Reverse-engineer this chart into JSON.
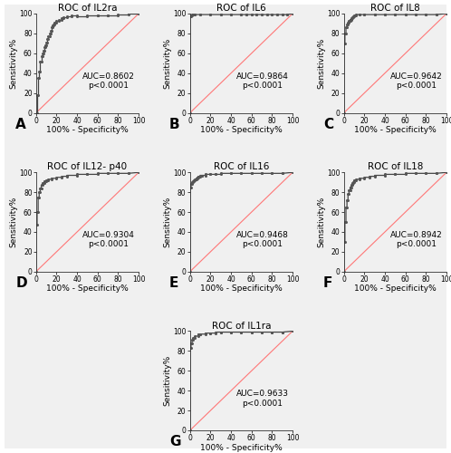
{
  "panels": [
    {
      "label": "A",
      "title": "ROC of IL2ra",
      "auc_text": "AUC=0.8602\np<0.0001",
      "roc_x": [
        0,
        1,
        1,
        2,
        2,
        3,
        3,
        4,
        4,
        5,
        5,
        6,
        6,
        7,
        7,
        8,
        8,
        9,
        9,
        10,
        10,
        11,
        11,
        12,
        12,
        13,
        13,
        14,
        14,
        15,
        15,
        16,
        16,
        17,
        17,
        18,
        18,
        20,
        20,
        22,
        22,
        25,
        25,
        27,
        27,
        30,
        30,
        35,
        35,
        40,
        40,
        50,
        50,
        60,
        60,
        70,
        70,
        80,
        80,
        90,
        90,
        100
      ],
      "roc_y": [
        0,
        0,
        18,
        18,
        35,
        35,
        42,
        42,
        52,
        52,
        57,
        57,
        60,
        60,
        63,
        63,
        66,
        66,
        68,
        68,
        71,
        71,
        74,
        74,
        77,
        77,
        80,
        80,
        83,
        83,
        86,
        86,
        88,
        88,
        89,
        89,
        91,
        91,
        93,
        93,
        94,
        94,
        95,
        95,
        96,
        96,
        97,
        97,
        98,
        98,
        97,
        97,
        98,
        98,
        98,
        98,
        98,
        98,
        99,
        99,
        100,
        100
      ]
    },
    {
      "label": "B",
      "title": "ROC of IL6",
      "auc_text": "AUC=0.9864\np<0.0001",
      "roc_x": [
        0,
        0,
        1,
        1,
        2,
        2,
        3,
        3,
        5,
        5,
        10,
        10,
        20,
        20,
        30,
        30,
        40,
        40,
        50,
        50,
        55,
        55,
        60,
        60,
        65,
        65,
        70,
        70,
        75,
        75,
        80,
        80,
        85,
        85,
        90,
        90,
        95,
        95,
        100
      ],
      "roc_y": [
        0,
        97,
        97,
        98,
        98,
        99,
        99,
        99,
        99,
        99,
        99,
        99,
        99,
        99,
        99,
        99,
        99,
        99,
        99,
        99,
        99,
        99,
        99,
        99,
        99,
        99,
        99,
        99,
        99,
        99,
        99,
        99,
        99,
        99,
        99,
        99,
        99,
        99,
        100
      ]
    },
    {
      "label": "C",
      "title": "ROC of IL8",
      "auc_text": "AUC=0.9642\np<0.0001",
      "roc_x": [
        0,
        0,
        1,
        1,
        2,
        2,
        3,
        3,
        4,
        4,
        5,
        5,
        6,
        6,
        7,
        7,
        8,
        8,
        9,
        9,
        10,
        10,
        12,
        12,
        15,
        15,
        20,
        20,
        30,
        30,
        40,
        40,
        50,
        50,
        60,
        60,
        70,
        70,
        80,
        80,
        90,
        90,
        100
      ],
      "roc_y": [
        0,
        70,
        70,
        80,
        80,
        86,
        86,
        89,
        89,
        91,
        91,
        93,
        93,
        94,
        94,
        95,
        95,
        96,
        96,
        97,
        97,
        98,
        98,
        99,
        99,
        99,
        99,
        99,
        99,
        99,
        99,
        99,
        99,
        99,
        99,
        99,
        99,
        99,
        99,
        99,
        99,
        99,
        100
      ]
    },
    {
      "label": "D",
      "title": "ROC of IL12- p40",
      "auc_text": "AUC=0.9304\np<0.0001",
      "roc_x": [
        0,
        0,
        1,
        1,
        2,
        2,
        3,
        3,
        4,
        4,
        5,
        5,
        6,
        6,
        8,
        8,
        10,
        10,
        12,
        12,
        15,
        15,
        20,
        20,
        25,
        25,
        30,
        30,
        40,
        40,
        50,
        50,
        60,
        60,
        70,
        70,
        80,
        80,
        90,
        90,
        100
      ],
      "roc_y": [
        0,
        47,
        47,
        60,
        60,
        75,
        75,
        80,
        80,
        84,
        84,
        87,
        87,
        89,
        89,
        91,
        91,
        92,
        92,
        93,
        93,
        94,
        94,
        95,
        95,
        96,
        96,
        97,
        97,
        98,
        98,
        98,
        98,
        99,
        99,
        99,
        99,
        99,
        99,
        99,
        100
      ]
    },
    {
      "label": "E",
      "title": "ROC of IL16",
      "auc_text": "AUC=0.9468\np<0.0001",
      "roc_x": [
        0,
        0,
        1,
        1,
        2,
        2,
        3,
        3,
        4,
        4,
        5,
        5,
        6,
        6,
        7,
        7,
        8,
        8,
        10,
        10,
        12,
        12,
        15,
        15,
        20,
        20,
        25,
        25,
        30,
        30,
        40,
        40,
        50,
        50,
        60,
        60,
        70,
        70,
        80,
        80,
        90,
        90,
        100
      ],
      "roc_y": [
        0,
        85,
        85,
        88,
        88,
        90,
        90,
        91,
        91,
        92,
        92,
        93,
        93,
        94,
        94,
        95,
        95,
        96,
        96,
        97,
        97,
        97,
        97,
        98,
        98,
        98,
        98,
        98,
        98,
        99,
        99,
        99,
        99,
        99,
        99,
        99,
        99,
        99,
        99,
        99,
        99,
        99,
        100
      ]
    },
    {
      "label": "F",
      "title": "ROC of IL18",
      "auc_text": "AUC=0.8942\np<0.0001",
      "roc_x": [
        0,
        0,
        1,
        1,
        2,
        2,
        3,
        3,
        4,
        4,
        5,
        5,
        6,
        6,
        7,
        7,
        8,
        8,
        9,
        9,
        10,
        10,
        12,
        12,
        15,
        15,
        20,
        20,
        25,
        25,
        30,
        30,
        40,
        40,
        50,
        50,
        60,
        60,
        70,
        70,
        80,
        80,
        90,
        90,
        100
      ],
      "roc_y": [
        0,
        30,
        30,
        50,
        50,
        65,
        65,
        72,
        72,
        78,
        78,
        82,
        82,
        85,
        85,
        87,
        87,
        89,
        89,
        90,
        90,
        92,
        92,
        93,
        93,
        94,
        94,
        95,
        95,
        96,
        96,
        97,
        97,
        98,
        98,
        98,
        98,
        99,
        99,
        99,
        99,
        99,
        99,
        99,
        100
      ]
    },
    {
      "label": "G",
      "title": "ROC of IL1ra",
      "auc_text": "AUC=0.9633\np<0.0001",
      "roc_x": [
        0,
        0,
        1,
        1,
        2,
        2,
        3,
        3,
        5,
        5,
        8,
        8,
        10,
        10,
        15,
        15,
        20,
        20,
        25,
        25,
        30,
        30,
        40,
        40,
        50,
        50,
        60,
        60,
        70,
        70,
        80,
        80,
        90,
        90,
        100
      ],
      "roc_y": [
        0,
        83,
        83,
        88,
        88,
        91,
        91,
        93,
        93,
        95,
        95,
        97,
        97,
        97,
        97,
        98,
        98,
        98,
        98,
        99,
        99,
        99,
        99,
        99,
        99,
        99,
        99,
        99,
        99,
        99,
        99,
        99,
        99,
        99,
        100
      ]
    }
  ],
  "line_color": "#444444",
  "marker_color": "#555555",
  "ref_line_color": "#ff7777",
  "bg_color": "#f0f0f0",
  "outer_bg": "#ffffff",
  "tick_fontsize": 5.5,
  "label_fontsize": 6.5,
  "title_fontsize": 7.5,
  "auc_fontsize": 6.5,
  "panel_label_fontsize": 11
}
